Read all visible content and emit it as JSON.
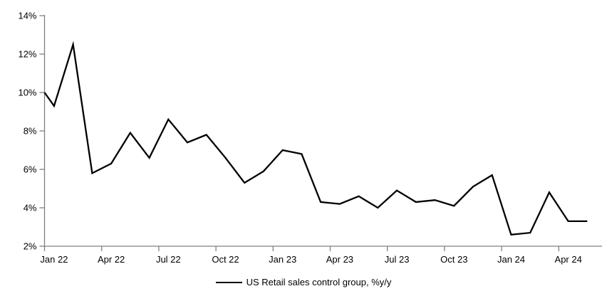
{
  "chart_data": {
    "type": "line",
    "title": "",
    "legend": "US Retail sales control group, %y/y",
    "legend_position": "bottom-center",
    "grid": false,
    "background_color": "#ffffff",
    "line_color": "#000000",
    "axis_color": "#808080",
    "text_color": "#000000",
    "ylim": [
      2,
      14
    ],
    "y_tick_values": [
      2,
      4,
      6,
      8,
      10,
      12,
      14
    ],
    "y_tick_labels": [
      "2%",
      "4%",
      "6%",
      "8%",
      "10%",
      "12%",
      "14%"
    ],
    "x_tick_labels": [
      "Jan 22",
      "Apr 22",
      "Jul 22",
      "Oct 22",
      "Jan 23",
      "Apr 23",
      "Jul 23",
      "Oct 23",
      "Jan 24",
      "Apr 24"
    ],
    "categories": [
      "Jan 22",
      "Feb 22",
      "Mar 22",
      "Apr 22",
      "May 22",
      "Jun 22",
      "Jul 22",
      "Aug 22",
      "Sep 22",
      "Oct 22",
      "Nov 22",
      "Dec 22",
      "Jan 23",
      "Feb 23",
      "Mar 23",
      "Apr 23",
      "May 23",
      "Jun 23",
      "Jul 23",
      "Aug 23",
      "Sep 23",
      "Oct 23",
      "Nov 23",
      "Dec 23",
      "Jan 24",
      "Feb 24",
      "Mar 24",
      "Apr 24",
      "May 24"
    ],
    "series": [
      {
        "name": "US Retail sales control group, %y/y",
        "values": [
          9.3,
          12.5,
          5.8,
          6.3,
          7.9,
          6.6,
          8.6,
          7.4,
          7.8,
          6.6,
          5.3,
          5.9,
          7.0,
          6.8,
          4.3,
          4.2,
          4.6,
          4.0,
          4.9,
          4.3,
          4.4,
          4.1,
          5.1,
          5.7,
          2.6,
          2.7,
          4.8,
          3.3,
          3.3
        ]
      }
    ],
    "axis_entry_value": 10.0,
    "axis_entry_note": "line enters the plot exactly at the left axis at ~10% before dipping to the Jan 22 point"
  }
}
